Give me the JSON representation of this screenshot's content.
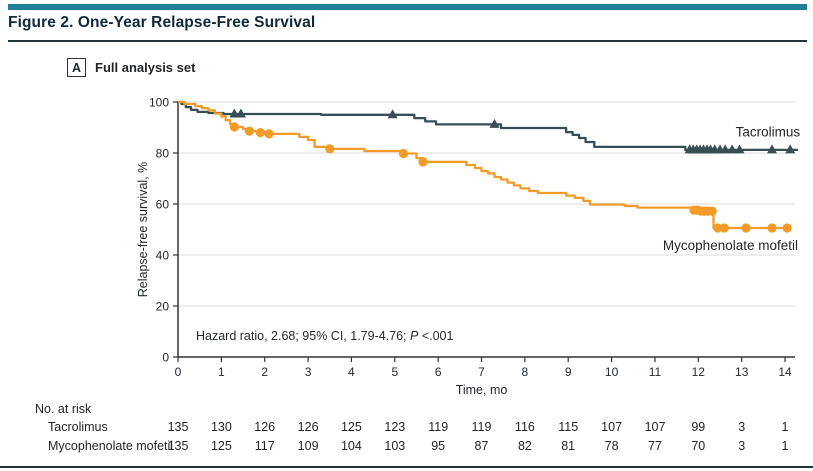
{
  "figure": {
    "title": "Figure 2. One-Year Relapse-Free Survival",
    "panel_label": "A",
    "panel_title": "Full analysis set"
  },
  "colors": {
    "accent_bar": "#1F7F96",
    "rule": "#22313A",
    "axis": "#333333",
    "grid": "#DBDBDB",
    "text": "#20262A",
    "tacrolimus": "#374E55",
    "mycophenolate": "#F29B28"
  },
  "chart_data": {
    "type": "line",
    "subtype": "kaplan-meier-step-survival",
    "xlabel": "Time, mo",
    "ylabel": "Relapse-free survival, %",
    "xlim": [
      0,
      14
    ],
    "ylim": [
      0,
      100
    ],
    "xticks": [
      0,
      1,
      2,
      3,
      4,
      5,
      6,
      7,
      8,
      9,
      10,
      11,
      12,
      13,
      14
    ],
    "yticks": [
      0,
      20,
      40,
      60,
      80,
      100
    ],
    "grid": "horizontal",
    "legend_position": "inline-right",
    "annotation": {
      "prefix": "Hazard ratio, 2.68; 95% CI, 1.79-4.76; ",
      "italic": "P",
      "suffix": " <.001"
    },
    "series": [
      {
        "id": "tacrolimus",
        "name": "Tacrolimus",
        "color": "#374E55",
        "marker": "triangle",
        "label_anchor": {
          "t": 14.35,
          "v": 86.5
        },
        "steps": [
          [
            0,
            100
          ],
          [
            0.08,
            99.2
          ],
          [
            0.18,
            98
          ],
          [
            0.3,
            96.9
          ],
          [
            0.45,
            96.1
          ],
          [
            0.7,
            95.7
          ],
          [
            1.05,
            95.3
          ],
          [
            3.3,
            95
          ],
          [
            5.45,
            93.7
          ],
          [
            5.7,
            92.4
          ],
          [
            5.95,
            91.2
          ],
          [
            7.45,
            89.8
          ],
          [
            8.95,
            88.2
          ],
          [
            9.1,
            87.1
          ],
          [
            9.25,
            85.9
          ],
          [
            9.4,
            84.3
          ],
          [
            9.6,
            82.4
          ],
          [
            11.7,
            81.2
          ],
          [
            14.3,
            81.2
          ]
        ],
        "censors": [
          [
            1.3,
            95.3
          ],
          [
            1.45,
            95.3
          ],
          [
            4.95,
            95
          ],
          [
            7.3,
            91.2
          ],
          [
            11.8,
            81.2
          ],
          [
            11.88,
            81.2
          ],
          [
            11.96,
            81.2
          ],
          [
            12.04,
            81.2
          ],
          [
            12.12,
            81.2
          ],
          [
            12.2,
            81.2
          ],
          [
            12.28,
            81.2
          ],
          [
            12.38,
            81.2
          ],
          [
            12.5,
            81.2
          ],
          [
            12.62,
            81.2
          ],
          [
            12.78,
            81.2
          ],
          [
            12.95,
            81.2
          ],
          [
            13.7,
            81.2
          ],
          [
            14.12,
            81.2
          ]
        ]
      },
      {
        "id": "mycophenolate-mofetil",
        "name": "Mycophenolate mofetil",
        "color": "#F29B28",
        "marker": "circle",
        "label_anchor": {
          "t": 14.3,
          "v": 42
        },
        "steps": [
          [
            0,
            100
          ],
          [
            0.15,
            99.2
          ],
          [
            0.4,
            98.4
          ],
          [
            0.55,
            97.6
          ],
          [
            0.7,
            96.7
          ],
          [
            0.85,
            95.5
          ],
          [
            1,
            94.3
          ],
          [
            1.1,
            92.9
          ],
          [
            1.2,
            91.4
          ],
          [
            1.3,
            90.2
          ],
          [
            1.5,
            89.4
          ],
          [
            1.65,
            88.6
          ],
          [
            1.9,
            88
          ],
          [
            2.1,
            87.5
          ],
          [
            2.8,
            86.3
          ],
          [
            3,
            85.1
          ],
          [
            3.15,
            82.4
          ],
          [
            3.5,
            81.6
          ],
          [
            4.3,
            80.8
          ],
          [
            5.15,
            79.8
          ],
          [
            5.5,
            78
          ],
          [
            5.65,
            76.5
          ],
          [
            6.65,
            75.3
          ],
          [
            6.85,
            74.1
          ],
          [
            7,
            72.9
          ],
          [
            7.15,
            72
          ],
          [
            7.3,
            70.6
          ],
          [
            7.45,
            69.6
          ],
          [
            7.6,
            68.4
          ],
          [
            7.75,
            67.3
          ],
          [
            7.9,
            66.1
          ],
          [
            8.1,
            65.1
          ],
          [
            8.3,
            64.3
          ],
          [
            8.95,
            63.3
          ],
          [
            9.15,
            62.4
          ],
          [
            9.35,
            61.2
          ],
          [
            9.5,
            59.8
          ],
          [
            10.3,
            59.2
          ],
          [
            10.6,
            58.6
          ],
          [
            11.9,
            57.6
          ],
          [
            12.1,
            57.2
          ],
          [
            12.35,
            50.6
          ],
          [
            14.15,
            50.6
          ]
        ],
        "censors": [
          [
            1.3,
            90.2
          ],
          [
            1.65,
            88.6
          ],
          [
            1.9,
            88
          ],
          [
            2.1,
            87.5
          ],
          [
            3.5,
            81.6
          ],
          [
            5.2,
            79.8
          ],
          [
            5.65,
            76.5
          ],
          [
            11.9,
            57.6
          ],
          [
            11.98,
            57.6
          ],
          [
            12.06,
            57.2
          ],
          [
            12.14,
            57.2
          ],
          [
            12.22,
            57.2
          ],
          [
            12.32,
            57.2
          ],
          [
            12.45,
            50.6
          ],
          [
            12.6,
            50.6
          ],
          [
            13.1,
            50.6
          ],
          [
            13.7,
            50.6
          ],
          [
            14.05,
            50.6
          ]
        ]
      }
    ]
  },
  "risk_table": {
    "header": "No. at risk",
    "rows": [
      {
        "label": "Tacrolimus",
        "values": [
          135,
          130,
          126,
          126,
          125,
          123,
          119,
          119,
          116,
          115,
          107,
          107,
          99,
          3,
          1
        ]
      },
      {
        "label": "Mycophenolate mofetil",
        "values": [
          135,
          125,
          117,
          109,
          104,
          103,
          95,
          87,
          82,
          81,
          78,
          77,
          70,
          3,
          1
        ]
      }
    ]
  }
}
